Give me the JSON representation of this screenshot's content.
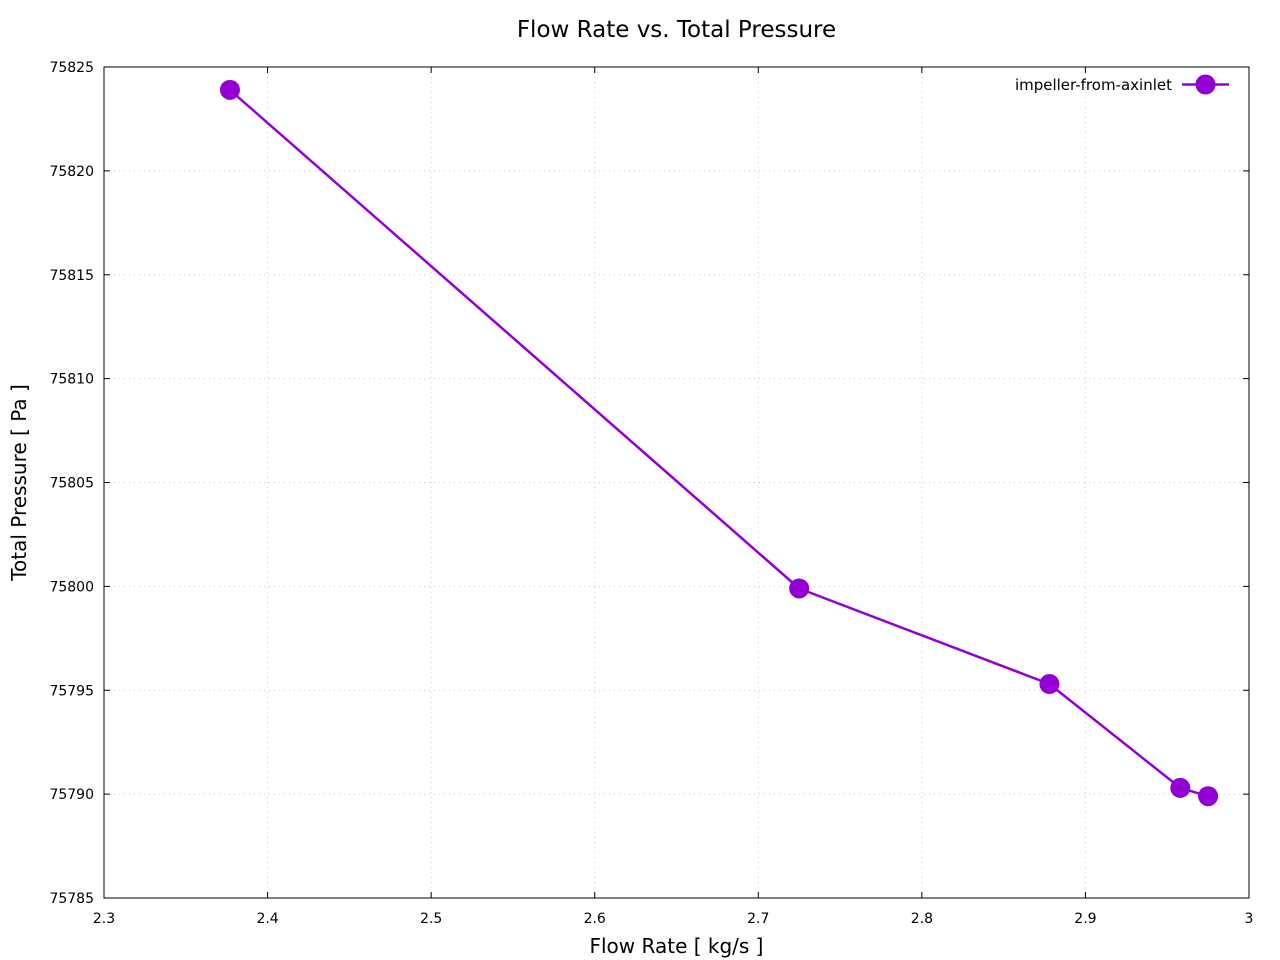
{
  "chart_data": {
    "type": "line",
    "title": "Flow Rate vs. Total Pressure",
    "xlabel": "Flow Rate [ kg/s ]",
    "ylabel": "Total Pressure [ Pa ]",
    "xlim": [
      2.3,
      3.0
    ],
    "ylim": [
      75785,
      75825
    ],
    "xticks": [
      2.3,
      2.4,
      2.5,
      2.6,
      2.7,
      2.8,
      2.9,
      3.0
    ],
    "xtick_labels": [
      "2.3",
      "2.4",
      "2.5",
      "2.6",
      "2.7",
      "2.8",
      "2.9",
      "3"
    ],
    "yticks": [
      75785,
      75790,
      75795,
      75800,
      75805,
      75810,
      75815,
      75820,
      75825
    ],
    "ytick_labels": [
      "75785",
      "75790",
      "75795",
      "75800",
      "75805",
      "75810",
      "75815",
      "75820",
      "75825"
    ],
    "grid": true,
    "legend_position": "top-right",
    "series": [
      {
        "name": "impeller-from-axinlet",
        "color": "#9400d3",
        "marker": "circle",
        "x": [
          2.377,
          2.725,
          2.878,
          2.958,
          2.975
        ],
        "y": [
          75823.9,
          75799.9,
          75795.3,
          75790.3,
          75789.9
        ]
      }
    ]
  }
}
